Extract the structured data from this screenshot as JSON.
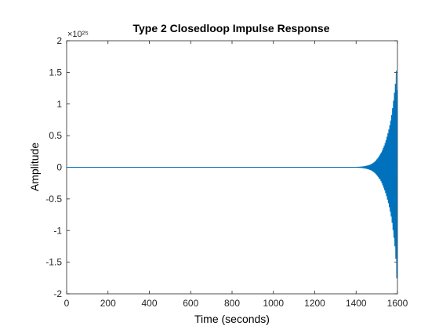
{
  "chart_data": {
    "type": "line",
    "title": "Type 2 Closedloop Impulse Response",
    "xlabel": "Time (seconds)",
    "ylabel": "Amplitude",
    "xlim": [
      0,
      1600
    ],
    "ylim": [
      -2,
      2
    ],
    "y_scale_exponent_label": "×10²⁵",
    "y_scale_factor": 1e+25,
    "xticks": [
      0,
      200,
      400,
      600,
      800,
      1000,
      1200,
      1400,
      1600
    ],
    "xtick_labels": [
      "0",
      "200",
      "400",
      "600",
      "800",
      "1000",
      "1200",
      "1400",
      "1600"
    ],
    "yticks": [
      -2,
      -1.5,
      -1,
      -0.5,
      0,
      0.5,
      1,
      1.5,
      2
    ],
    "ytick_labels": [
      "-2",
      "-1.5",
      "-1",
      "-0.5",
      "0",
      "0.5",
      "1",
      "1.5",
      "2"
    ],
    "grid": false,
    "box": true,
    "series": [
      {
        "color": "#0072BD",
        "shape": "oscillatory growing response",
        "t_start": 0,
        "t_end": 1598,
        "oscillation_period": 4.5,
        "envelope": {
          "growth_points": [
            [
              1400,
              0.002
            ],
            [
              1450,
              0.02
            ],
            [
              1500,
              0.12
            ],
            [
              1530,
              0.3
            ],
            [
              1550,
              0.5
            ],
            [
              1570,
              0.8
            ],
            [
              1580,
              1.05
            ],
            [
              1590,
              1.35
            ],
            [
              1598,
              1.9
            ]
          ]
        },
        "peak_max": 1.52,
        "peak_min": -1.95
      }
    ]
  }
}
